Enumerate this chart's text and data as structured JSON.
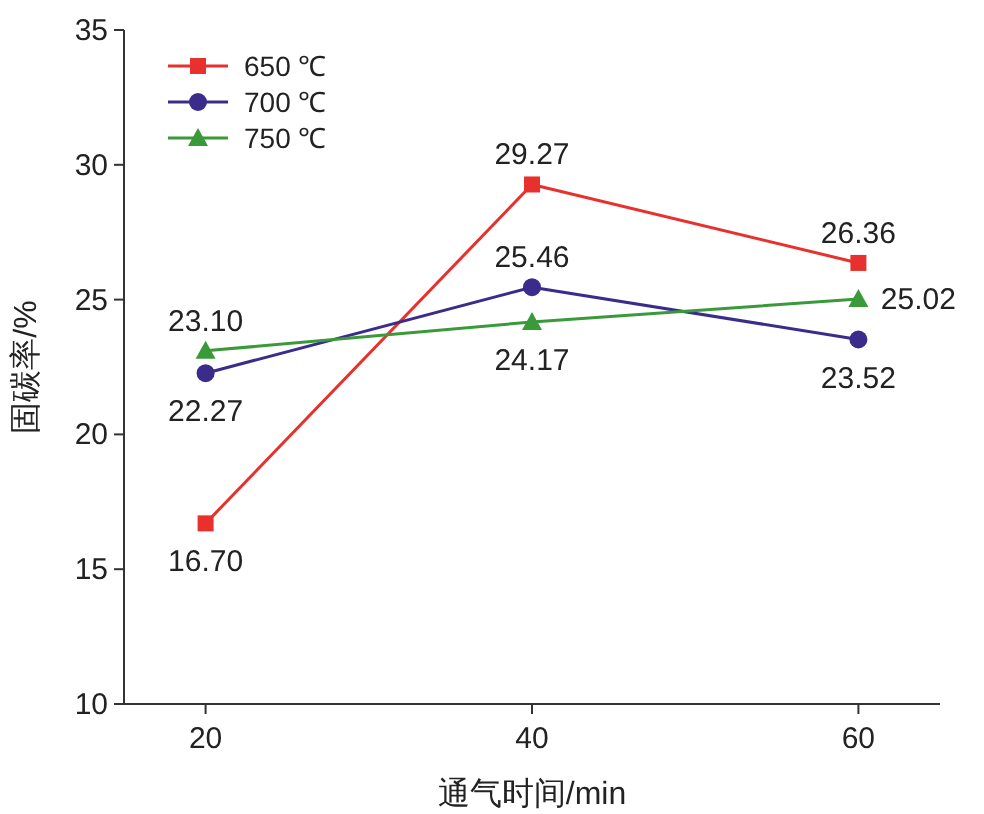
{
  "chart_data": {
    "type": "line",
    "xlabel": "通气时间/min",
    "ylabel": "固碳率/%",
    "x": [
      20,
      40,
      60
    ],
    "xlim": [
      15,
      65
    ],
    "xticks": [
      20,
      40,
      60
    ],
    "ylim": [
      10,
      35
    ],
    "yticks": [
      10,
      15,
      20,
      25,
      30,
      35
    ],
    "series": [
      {
        "name": "650 ℃",
        "color": "#e8302c",
        "marker": "square",
        "values": [
          16.7,
          29.27,
          26.36
        ],
        "value_labels": [
          "16.70",
          "29.27",
          "26.36"
        ]
      },
      {
        "name": "700 ℃",
        "color": "#3b2c8c",
        "marker": "circle",
        "values": [
          22.27,
          25.46,
          23.52
        ],
        "value_labels": [
          "22.27",
          "25.46",
          "23.52"
        ]
      },
      {
        "name": "750 ℃",
        "color": "#3a9a3a",
        "marker": "triangle",
        "values": [
          23.1,
          24.17,
          25.02
        ],
        "value_labels": [
          "23.10",
          "24.17",
          "25.02"
        ]
      }
    ],
    "legend": "top left",
    "grid": false,
    "line_style": "solid"
  }
}
